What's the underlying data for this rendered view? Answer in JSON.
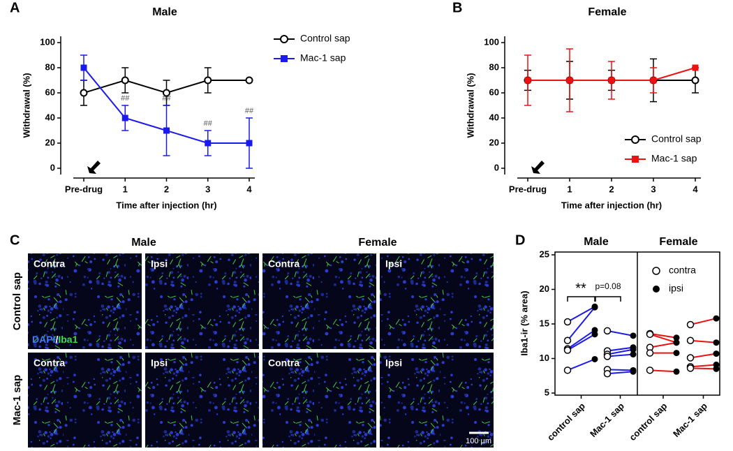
{
  "chart_data": [
    {
      "type": "line",
      "panel": "A",
      "title": "Male",
      "x_label": "Time after injection (hr)",
      "y_label": "Withdrawal (%)",
      "categories": [
        "Pre-drug",
        "1",
        "2",
        "3",
        "4"
      ],
      "ylim": [
        -5,
        105
      ],
      "yticks": [
        0,
        20,
        40,
        60,
        80,
        100
      ],
      "legend": "outside right",
      "series": [
        {
          "name": "Control sap",
          "color": "#000000",
          "marker": "open-circle",
          "values": [
            60,
            70,
            60,
            70,
            70
          ],
          "errors": [
            10,
            10,
            10,
            10,
            0
          ]
        },
        {
          "name": "Mac-1 sap",
          "color": "#1a1aee",
          "marker": "square",
          "values": [
            80,
            40,
            30,
            20,
            20
          ],
          "errors": [
            10,
            10,
            20,
            10,
            20
          ],
          "annotations": [
            null,
            "##",
            "##",
            "##",
            "##"
          ]
        }
      ]
    },
    {
      "type": "line",
      "panel": "B",
      "title": "Female",
      "x_label": "Time after injection (hr)",
      "y_label": "Withdrawal (%)",
      "categories": [
        "Pre-drug",
        "1",
        "2",
        "3",
        "4"
      ],
      "ylim": [
        -5,
        105
      ],
      "yticks": [
        0,
        20,
        40,
        60,
        80,
        100
      ],
      "legend": "lower right",
      "series": [
        {
          "name": "Control sap",
          "color": "#000000",
          "marker": "open-circle",
          "values": [
            70,
            70,
            70,
            70,
            70
          ],
          "errors": [
            8,
            15,
            8,
            17,
            10
          ]
        },
        {
          "name": "Mac-1 sap",
          "color": "#ee1111",
          "marker": "square",
          "values": [
            70,
            70,
            70,
            70,
            80
          ],
          "errors": [
            20,
            25,
            15,
            10,
            0
          ]
        }
      ]
    },
    {
      "type": "paired-dot",
      "panel": "D",
      "y_label": "Iba1-ir (% area)",
      "ylim": [
        5,
        25
      ],
      "yticks": [
        5,
        10,
        15,
        20,
        25
      ],
      "series_names": [
        "contra",
        "ipsi"
      ],
      "legend": "upper right",
      "sections": [
        {
          "title": "Male",
          "color": "#1a1aee",
          "groups": [
            {
              "name": "control sap",
              "contra": [
                15.3,
                12.6,
                11.4,
                11.2,
                8.3
              ],
              "ipsi": [
                17.5,
                17.4,
                14.1,
                13.5,
                9.9
              ]
            },
            {
              "name": "Mac-1 sap",
              "contra": [
                14.0,
                11.1,
                10.6,
                10.3,
                8.4,
                7.8
              ],
              "ipsi": [
                13.3,
                11.6,
                11.3,
                10.6,
                8.3,
                8.1
              ]
            }
          ]
        },
        {
          "title": "Female",
          "color": "#ee1111",
          "groups": [
            {
              "name": "control sap",
              "contra": [
                13.6,
                13.5,
                11.6,
                10.8,
                8.3
              ],
              "ipsi": [
                13.0,
                12.3,
                12.3,
                10.8,
                8.1
              ]
            },
            {
              "name": "Mac-1 sap",
              "contra": [
                14.9,
                12.6,
                10.1,
                8.8,
                8.6
              ],
              "ipsi": [
                15.8,
                12.3,
                10.7,
                9.1,
                8.5
              ]
            }
          ]
        }
      ],
      "annotations": [
        "**",
        "p=0.08"
      ]
    }
  ],
  "panel_c": {
    "panel": "C",
    "columns": [
      "Male",
      "Female"
    ],
    "rows": [
      "Control sap",
      "Mac-1 sap"
    ],
    "image_labels": [
      "Contra",
      "Ipsi",
      "Contra",
      "Ipsi"
    ],
    "stain": [
      "DAPI",
      "/",
      "Iba1"
    ],
    "scale_bar": "100 µm"
  }
}
